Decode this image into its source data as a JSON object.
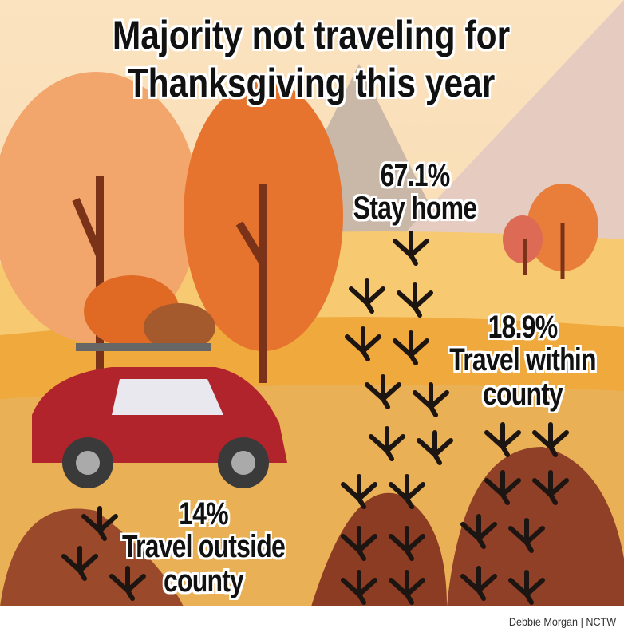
{
  "title": "Majority not traveling for Thanksgiving this year",
  "stats": [
    {
      "value": "67.1%",
      "label": "Stay home"
    },
    {
      "value": "18.9%",
      "label": "Travel within county"
    },
    {
      "value": "14%",
      "label": "Travel outside county"
    }
  ],
  "credit": "Debbie Morgan | NCTW"
}
